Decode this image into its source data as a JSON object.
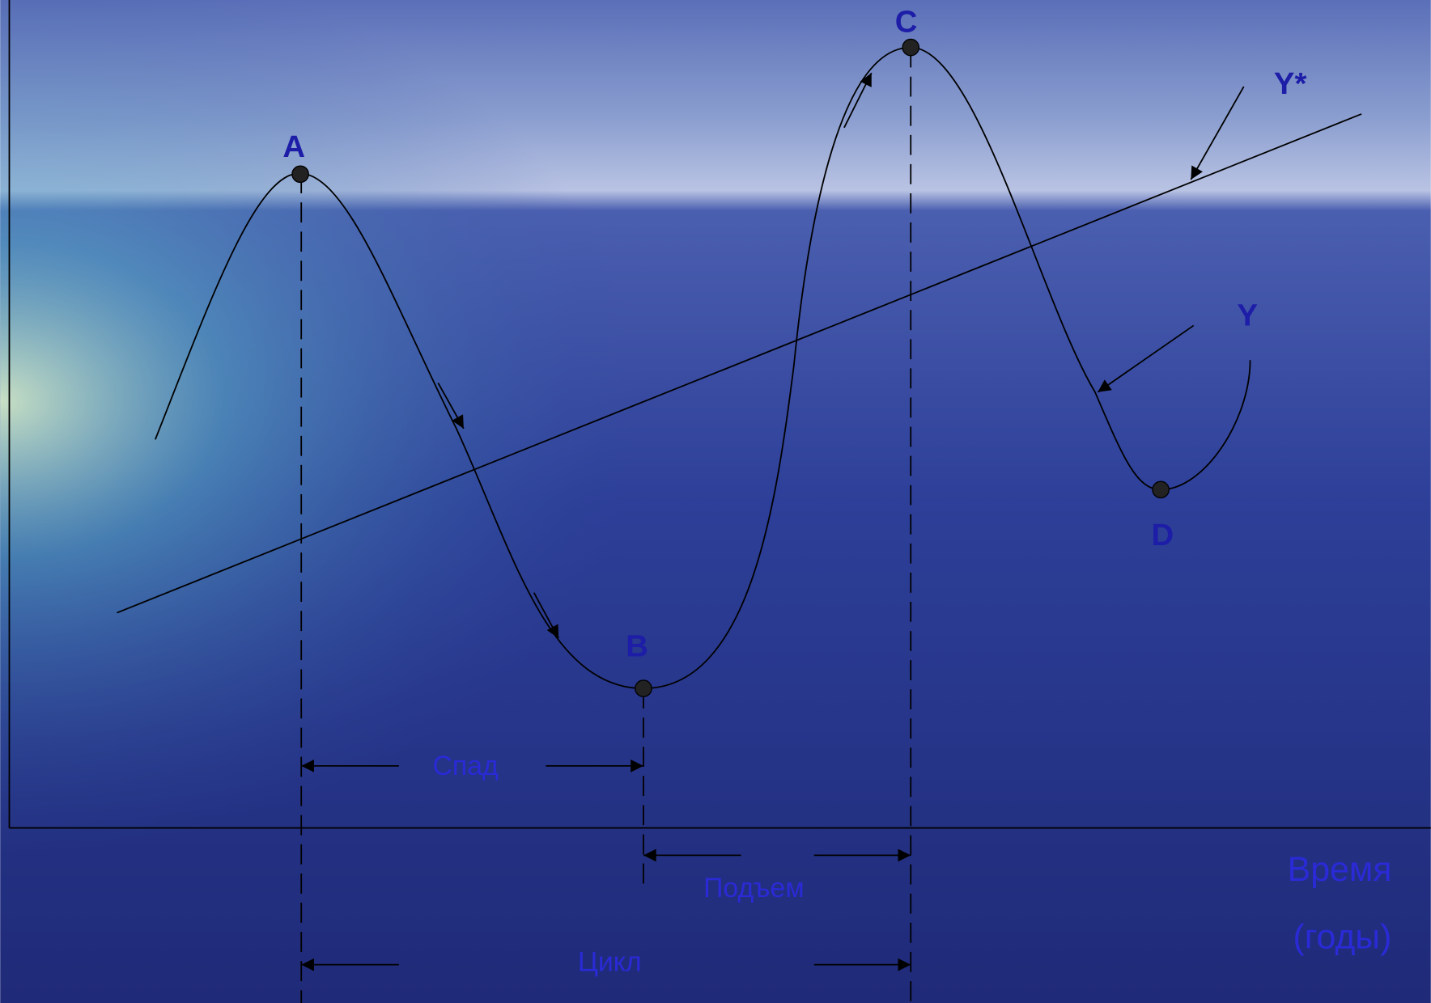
{
  "points": [
    {
      "label": "A"
    },
    {
      "label": "B"
    },
    {
      "label": "C"
    },
    {
      "label": "D"
    }
  ],
  "curves": {
    "trend": "Y*",
    "actual": "Y"
  },
  "phases": {
    "decline": "Спад",
    "rise": "Подъем",
    "cycle": "Цикл"
  },
  "axis": {
    "x_label": "Время",
    "x_unit": "(годы)"
  }
}
